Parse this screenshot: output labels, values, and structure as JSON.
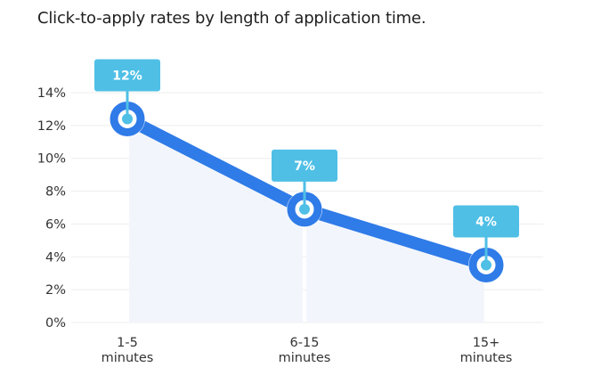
{
  "title": "Click-to-apply rates by length of application time.",
  "colors": {
    "line": "#2f7be8",
    "label_box": "#4fbfe6",
    "fill": "#f2f6fc",
    "grid": "#eeeeee",
    "text": "#333333"
  },
  "chart_data": {
    "type": "line",
    "title": "Click-to-apply rates by length of application time.",
    "xlabel": "",
    "ylabel": "",
    "categories": [
      "1-5 minutes",
      "6-15 minutes",
      "15+ minutes"
    ],
    "x_tick_lines": [
      [
        "1-5",
        "minutes"
      ],
      [
        "6-15",
        "minutes"
      ],
      [
        "15+",
        "minutes"
      ]
    ],
    "series": [
      {
        "name": "Click-to-apply rate",
        "values": [
          12.4,
          6.9,
          3.5
        ],
        "data_labels": [
          "12%",
          "7%",
          "4%"
        ]
      }
    ],
    "ylim": [
      0,
      14
    ],
    "y_ticks": [
      "0%",
      "2%",
      "4%",
      "6%",
      "8%",
      "10%",
      "12%",
      "14%"
    ],
    "grid": true,
    "legend": "none"
  }
}
